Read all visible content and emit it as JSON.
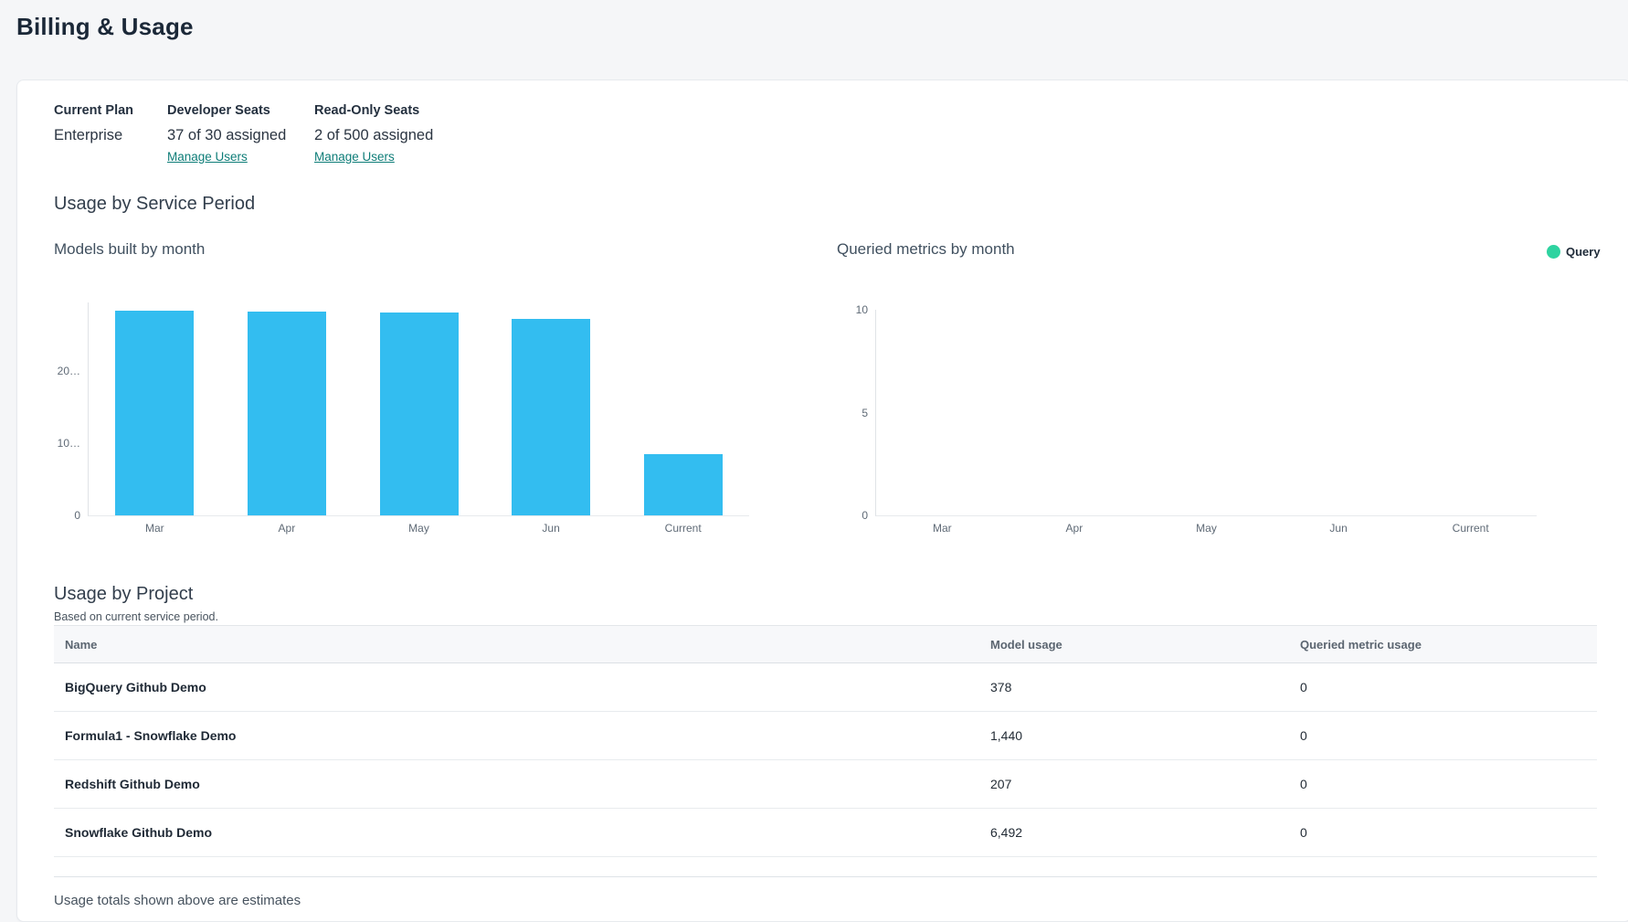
{
  "page": {
    "title": "Billing & Usage"
  },
  "plan": {
    "current_plan_label": "Current Plan",
    "current_plan_value": "Enterprise",
    "developer_seats_label": "Developer Seats",
    "developer_seats_value": "37 of 30 assigned",
    "developer_seats_link": "Manage Users",
    "readonly_seats_label": "Read-Only Seats",
    "readonly_seats_value": "2 of 500 assigned",
    "readonly_seats_link": "Manage Users"
  },
  "usage_section": {
    "title": "Usage by Service Period"
  },
  "chart_data": [
    {
      "type": "bar",
      "title": "Models built by month",
      "categories": [
        "Mar",
        "Apr",
        "May",
        "Jun",
        "Current"
      ],
      "values": [
        28300,
        28200,
        28150,
        27200,
        8500
      ],
      "ylim": [
        0,
        29500
      ],
      "ytick_values": [
        0,
        10000,
        20000
      ],
      "ytick_labels": [
        "0",
        "10…",
        "20…"
      ],
      "bar_color": "#33bdf0",
      "grid": false,
      "legend": null
    },
    {
      "type": "bar",
      "title": "Queried metrics by month",
      "categories": [
        "Mar",
        "Apr",
        "May",
        "Jun",
        "Current"
      ],
      "values": [
        0,
        0,
        0,
        0,
        0
      ],
      "ylim": [
        0,
        10
      ],
      "ytick_values": [
        0,
        5,
        10
      ],
      "ytick_labels": [
        "0",
        "5",
        "10"
      ],
      "bar_color": "#2ed3a0",
      "grid": false,
      "legend": {
        "label": "Query",
        "color": "#2ed3a0",
        "position": "top-right"
      }
    }
  ],
  "project_section": {
    "title": "Usage by Project",
    "subtitle": "Based on current service period.",
    "table": {
      "columns": [
        "Name",
        "Model usage",
        "Queried metric usage"
      ],
      "rows": [
        {
          "name": "BigQuery Github Demo",
          "model_usage": "378",
          "queried_metric_usage": "0"
        },
        {
          "name": "Formula1 - Snowflake Demo",
          "model_usage": "1,440",
          "queried_metric_usage": "0"
        },
        {
          "name": "Redshift Github Demo",
          "model_usage": "207",
          "queried_metric_usage": "0"
        },
        {
          "name": "Snowflake Github Demo",
          "model_usage": "6,492",
          "queried_metric_usage": "0"
        }
      ]
    },
    "footer_note": "Usage totals shown above are estimates"
  },
  "colors": {
    "page_background": "#f5f6f8",
    "card_background": "#ffffff",
    "bar_blue": "#33bdf0",
    "legend_green": "#2ed3a0",
    "link_teal": "#0e7d78",
    "heading_navy": "#1b2838"
  }
}
